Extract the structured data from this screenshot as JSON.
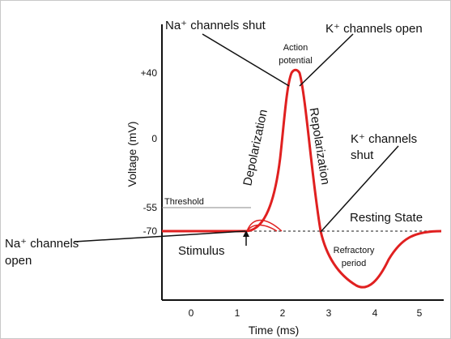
{
  "axes": {
    "x_label": "Time (ms)",
    "y_label": "Voltage (mV)",
    "x_ticks": [
      "0",
      "1",
      "2",
      "3",
      "4",
      "5"
    ],
    "y_ticks": [
      "+40",
      "0",
      "-55",
      "-70"
    ]
  },
  "annotations": {
    "na_shut": "Na⁺ channels shut",
    "k_open": "K⁺ channels open",
    "action_potential_1": "Action",
    "action_potential_2": "potential",
    "depolarization": "Depolarization",
    "repolarization": "Repolarization",
    "k_shut_1": "K⁺ channels",
    "k_shut_2": "shut",
    "threshold": "Threshold",
    "resting_state": "Resting State",
    "na_open_1": "Na⁺ channels",
    "na_open_2": "open",
    "stimulus": "Stimulus",
    "refractory_1": "Refractory",
    "refractory_2": "period"
  },
  "colors": {
    "curve": "#e02020",
    "axis": "#111111",
    "guide": "#888888"
  }
}
